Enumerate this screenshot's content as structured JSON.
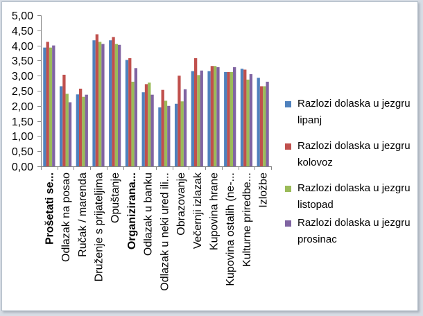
{
  "chart_data": {
    "type": "bar",
    "categories": [
      "Prošetati se...",
      "Odlazak na posao",
      "Ručak / marenda",
      "Druženje s prijateljima",
      "Opuštanje",
      "Organizirana...",
      "Odlazak u banku",
      "Odlazak u neki ured ili...",
      "Obrazovanje",
      "Večernji izlazak",
      "Kupovina hrane",
      "Kupovina ostalih (ne-...",
      "Kulturne priredbe...",
      "Izložbe"
    ],
    "series": [
      {
        "name": "Razlozi dolaska u jezgru lipanj",
        "color": "#4F81BD",
        "values": [
          3.93,
          2.65,
          2.38,
          4.17,
          4.17,
          3.52,
          2.45,
          1.95,
          2.07,
          3.15,
          3.15,
          3.12,
          3.23,
          2.93
        ]
      },
      {
        "name": "Razlozi dolaska u jezgru kolovoz",
        "color": "#C0504D",
        "values": [
          4.12,
          3.03,
          2.57,
          4.37,
          4.28,
          3.58,
          2.72,
          2.53,
          3.0,
          3.58,
          3.32,
          3.12,
          3.2,
          2.65
        ]
      },
      {
        "name": "Razlozi dolaska u jezgru listopad",
        "color": "#9BBB59",
        "values": [
          3.93,
          2.4,
          2.3,
          4.12,
          4.05,
          2.8,
          2.77,
          2.17,
          2.15,
          3.02,
          3.32,
          3.12,
          2.87,
          2.65
        ]
      },
      {
        "name": "Razlozi dolaska u jezgru prosinac",
        "color": "#8064A2",
        "values": [
          4.0,
          2.12,
          2.37,
          4.05,
          4.02,
          3.25,
          2.37,
          2.0,
          2.55,
          3.17,
          3.28,
          3.28,
          3.05,
          2.8
        ]
      }
    ],
    "ylim": [
      0,
      5
    ],
    "y_tick_step": 0.5,
    "y_tick_labels": [
      "0,00",
      "0,50",
      "1,00",
      "1,50",
      "2,00",
      "2,50",
      "3,00",
      "3,50",
      "4,00",
      "4,50",
      "5,00"
    ],
    "grid": false,
    "legend": "right"
  }
}
